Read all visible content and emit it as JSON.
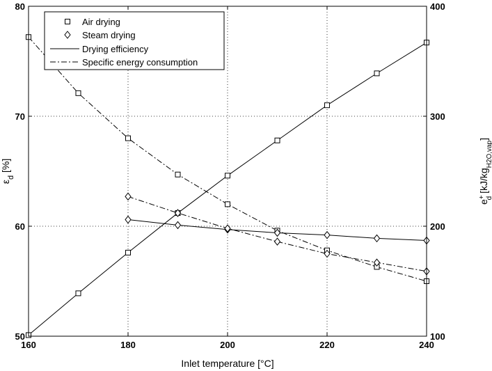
{
  "chart_data": {
    "type": "line",
    "x_axis": {
      "label": "Inlet temperature [°C]",
      "range": [
        160,
        240
      ],
      "ticks": [
        "160",
        "180",
        "200",
        "220",
        "240"
      ]
    },
    "y_left": {
      "label_main": "ε",
      "label_sub": "d",
      "label_rest": " [%]",
      "range": [
        50,
        80
      ],
      "ticks": [
        "50",
        "60",
        "70",
        "80"
      ]
    },
    "y_right": {
      "label_main": "e",
      "label_sup": "+",
      "label_sub": "d",
      "label_rest": " [kJ/kg",
      "label_sub2": "H2O,vap",
      "label_end": "]",
      "range": [
        100,
        400
      ],
      "ticks": [
        "100",
        "200",
        "300",
        "400"
      ]
    },
    "grid": true,
    "legend_position": "top-left",
    "legend": [
      {
        "label": "Air drying",
        "style": "square-marker"
      },
      {
        "label": "Steam drying",
        "style": "diamond-marker"
      },
      {
        "label": "Drying efficiency",
        "style": "solid-line"
      },
      {
        "label": "Specific energy consumption",
        "style": "dash-dot-line"
      }
    ],
    "series": [
      {
        "group": "Air drying",
        "metric": "Drying efficiency",
        "axis": "left",
        "marker": "square",
        "line": "solid",
        "x": [
          160,
          170,
          180,
          190,
          200,
          210,
          220,
          230,
          240
        ],
        "y": [
          50.1,
          53.9,
          57.6,
          61.2,
          64.6,
          67.8,
          71.0,
          73.9,
          76.7
        ]
      },
      {
        "group": "Air drying",
        "metric": "Specific energy consumption",
        "axis": "right",
        "marker": "square",
        "line": "dashdot",
        "x": [
          160,
          170,
          180,
          190,
          200,
          210,
          220,
          230,
          240
        ],
        "y": [
          372,
          321,
          280,
          247,
          220,
          196,
          178,
          163,
          150
        ]
      },
      {
        "group": "Steam drying",
        "metric": "Drying efficiency",
        "axis": "left",
        "marker": "diamond",
        "line": "solid",
        "x": [
          180,
          190,
          200,
          210,
          220,
          230,
          240
        ],
        "y": [
          60.6,
          60.1,
          59.7,
          59.4,
          59.2,
          58.9,
          58.7
        ]
      },
      {
        "group": "Steam drying",
        "metric": "Specific energy consumption",
        "axis": "right",
        "marker": "diamond",
        "line": "dashdot",
        "x": [
          180,
          190,
          200,
          210,
          220,
          230,
          240
        ],
        "y": [
          227,
          212,
          198,
          186,
          175,
          167,
          159
        ]
      }
    ]
  }
}
